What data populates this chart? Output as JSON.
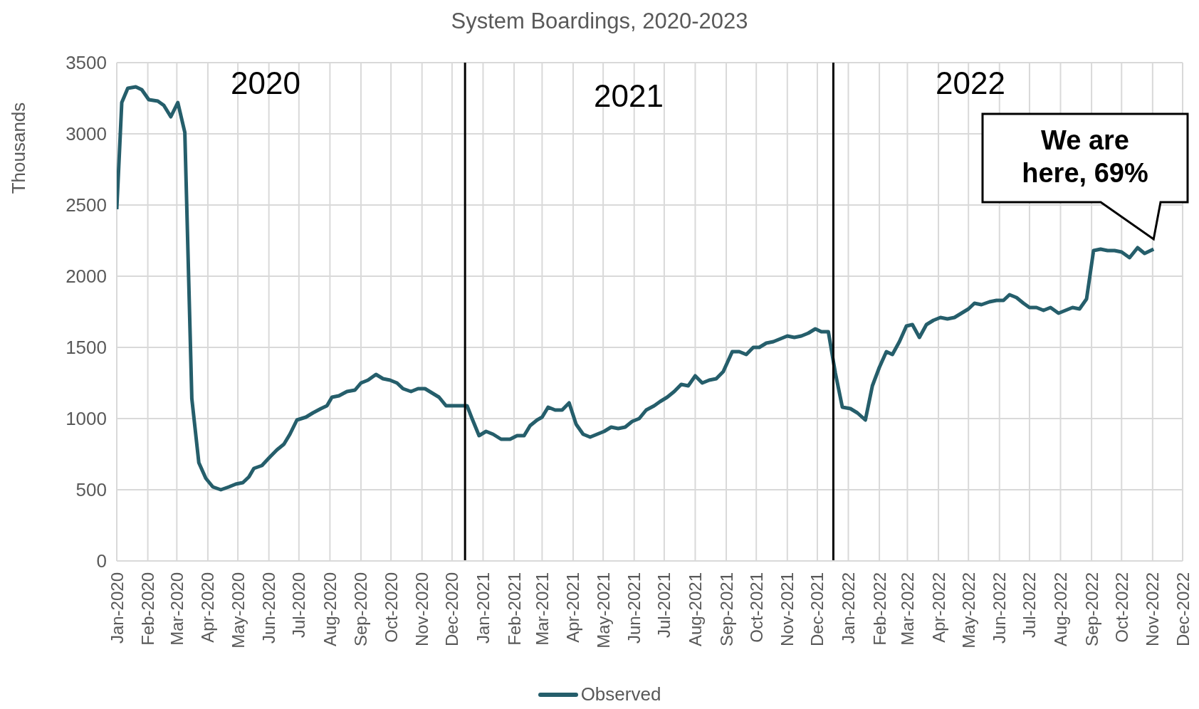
{
  "chart_data": {
    "type": "line",
    "title": "System Boardings, 2020-2023",
    "ylabel": "Thousands",
    "xlim": [
      "2020-01-01",
      "2022-12-01"
    ],
    "xticks": [
      {
        "value": "2020-01-01",
        "label": "Jan-2020"
      },
      {
        "value": "2020-02-01",
        "label": "Feb-2020"
      },
      {
        "value": "2020-03-01",
        "label": "Mar-2020"
      },
      {
        "value": "2020-04-01",
        "label": "Apr-2020"
      },
      {
        "value": "2020-05-01",
        "label": "May-2020"
      },
      {
        "value": "2020-06-01",
        "label": "Jun-2020"
      },
      {
        "value": "2020-07-01",
        "label": "Jul-2020"
      },
      {
        "value": "2020-08-01",
        "label": "Aug-2020"
      },
      {
        "value": "2020-09-01",
        "label": "Sep-2020"
      },
      {
        "value": "2020-10-01",
        "label": "Oct-2020"
      },
      {
        "value": "2020-11-01",
        "label": "Nov-2020"
      },
      {
        "value": "2020-12-01",
        "label": "Dec-2020"
      },
      {
        "value": "2021-01-01",
        "label": "Jan-2021"
      },
      {
        "value": "2021-02-01",
        "label": "Feb-2021"
      },
      {
        "value": "2021-03-01",
        "label": "Mar-2021"
      },
      {
        "value": "2021-04-01",
        "label": "Apr-2021"
      },
      {
        "value": "2021-05-01",
        "label": "May-2021"
      },
      {
        "value": "2021-06-01",
        "label": "Jun-2021"
      },
      {
        "value": "2021-07-01",
        "label": "Jul-2021"
      },
      {
        "value": "2021-08-01",
        "label": "Aug-2021"
      },
      {
        "value": "2021-09-01",
        "label": "Sep-2021"
      },
      {
        "value": "2021-10-01",
        "label": "Oct-2021"
      },
      {
        "value": "2021-11-01",
        "label": "Nov-2021"
      },
      {
        "value": "2021-12-01",
        "label": "Dec-2021"
      },
      {
        "value": "2022-01-01",
        "label": "Jan-2022"
      },
      {
        "value": "2022-02-01",
        "label": "Feb-2022"
      },
      {
        "value": "2022-03-01",
        "label": "Mar-2022"
      },
      {
        "value": "2022-04-01",
        "label": "Apr-2022"
      },
      {
        "value": "2022-05-01",
        "label": "May-2022"
      },
      {
        "value": "2022-06-01",
        "label": "Jun-2022"
      },
      {
        "value": "2022-07-01",
        "label": "Jul-2022"
      },
      {
        "value": "2022-08-01",
        "label": "Aug-2022"
      },
      {
        "value": "2022-09-01",
        "label": "Sep-2022"
      },
      {
        "value": "2022-10-01",
        "label": "Oct-2022"
      },
      {
        "value": "2022-11-01",
        "label": "Nov-2022"
      },
      {
        "value": "2022-12-01",
        "label": "Dec-2022"
      }
    ],
    "ylim": [
      0,
      3500
    ],
    "yticks": [
      0,
      500,
      1000,
      1500,
      2000,
      2500,
      3000,
      3500
    ],
    "grid": true,
    "legend": "bottom",
    "marker": "none",
    "line_style": "solid",
    "series": [
      {
        "name": "Observed",
        "color": "#255e6b",
        "x": [
          "2020-01-01",
          "2020-01-06",
          "2020-01-12",
          "2020-01-20",
          "2020-01-26",
          "2020-02-02",
          "2020-02-11",
          "2020-02-17",
          "2020-02-24",
          "2020-03-02",
          "2020-03-09",
          "2020-03-16",
          "2020-03-23",
          "2020-03-30",
          "2020-04-06",
          "2020-04-14",
          "2020-04-22",
          "2020-04-29",
          "2020-05-06",
          "2020-05-12",
          "2020-05-17",
          "2020-05-25",
          "2020-06-02",
          "2020-06-09",
          "2020-06-16",
          "2020-06-22",
          "2020-06-29",
          "2020-07-08",
          "2020-07-15",
          "2020-07-23",
          "2020-07-29",
          "2020-08-03",
          "2020-08-10",
          "2020-08-18",
          "2020-08-26",
          "2020-09-01",
          "2020-09-08",
          "2020-09-16",
          "2020-09-23",
          "2020-09-30",
          "2020-10-07",
          "2020-10-13",
          "2020-10-21",
          "2020-10-28",
          "2020-11-04",
          "2020-11-11",
          "2020-11-18",
          "2020-11-25",
          "2020-12-02",
          "2020-12-09",
          "2020-12-16",
          "2020-12-21",
          "2020-12-28",
          "2021-01-04",
          "2021-01-11",
          "2021-01-19",
          "2021-01-28",
          "2021-02-04",
          "2021-02-11",
          "2021-02-17",
          "2021-02-24",
          "2021-03-01",
          "2021-03-07",
          "2021-03-14",
          "2021-03-21",
          "2021-03-28",
          "2021-04-04",
          "2021-04-11",
          "2021-04-18",
          "2021-04-25",
          "2021-05-02",
          "2021-05-09",
          "2021-05-16",
          "2021-05-23",
          "2021-05-30",
          "2021-06-06",
          "2021-06-13",
          "2021-06-21",
          "2021-06-27",
          "2021-07-04",
          "2021-07-11",
          "2021-07-18",
          "2021-07-25",
          "2021-08-01",
          "2021-08-08",
          "2021-08-15",
          "2021-08-22",
          "2021-08-29",
          "2021-09-07",
          "2021-09-14",
          "2021-09-21",
          "2021-09-28",
          "2021-10-04",
          "2021-10-11",
          "2021-10-18",
          "2021-10-25",
          "2021-11-01",
          "2021-11-08",
          "2021-11-15",
          "2021-11-22",
          "2021-11-29",
          "2021-12-05",
          "2021-12-12",
          "2021-12-19",
          "2021-12-26",
          "2022-01-03",
          "2022-01-10",
          "2022-01-18",
          "2022-01-25",
          "2022-02-01",
          "2022-02-08",
          "2022-02-14",
          "2022-02-21",
          "2022-02-28",
          "2022-03-06",
          "2022-03-13",
          "2022-03-20",
          "2022-03-27",
          "2022-04-03",
          "2022-04-10",
          "2022-04-17",
          "2022-04-24",
          "2022-05-01",
          "2022-05-07",
          "2022-05-14",
          "2022-05-22",
          "2022-05-29",
          "2022-06-05",
          "2022-06-11",
          "2022-06-18",
          "2022-06-25",
          "2022-07-01",
          "2022-07-08",
          "2022-07-15",
          "2022-07-22",
          "2022-07-30",
          "2022-08-06",
          "2022-08-13",
          "2022-08-20",
          "2022-08-27",
          "2022-09-03",
          "2022-09-10",
          "2022-09-17",
          "2022-09-24",
          "2022-10-01",
          "2022-10-09",
          "2022-10-17",
          "2022-10-24",
          "2022-11-02"
        ],
        "values": [
          2470,
          3220,
          3320,
          3330,
          3310,
          3240,
          3230,
          3200,
          3120,
          3220,
          3010,
          1140,
          690,
          580,
          520,
          500,
          520,
          540,
          550,
          590,
          650,
          670,
          730,
          780,
          820,
          890,
          990,
          1010,
          1040,
          1070,
          1090,
          1150,
          1160,
          1190,
          1200,
          1250,
          1270,
          1310,
          1280,
          1270,
          1250,
          1210,
          1190,
          1210,
          1210,
          1180,
          1150,
          1090,
          1090,
          1090,
          1090,
          1000,
          880,
          910,
          890,
          855,
          855,
          880,
          880,
          950,
          990,
          1010,
          1080,
          1060,
          1060,
          1110,
          960,
          890,
          870,
          890,
          910,
          940,
          930,
          940,
          980,
          1000,
          1060,
          1090,
          1120,
          1150,
          1190,
          1240,
          1230,
          1300,
          1250,
          1270,
          1280,
          1330,
          1470,
          1470,
          1450,
          1500,
          1500,
          1530,
          1540,
          1560,
          1580,
          1570,
          1580,
          1600,
          1630,
          1610,
          1610,
          1320,
          1080,
          1070,
          1040,
          990,
          1230,
          1360,
          1470,
          1450,
          1540,
          1650,
          1660,
          1570,
          1660,
          1690,
          1710,
          1700,
          1710,
          1740,
          1770,
          1810,
          1800,
          1820,
          1830,
          1830,
          1870,
          1850,
          1810,
          1780,
          1780,
          1760,
          1780,
          1740,
          1760,
          1780,
          1770,
          1840,
          2180,
          2190,
          2180,
          2180,
          2170,
          2130,
          2200,
          2160,
          2190
        ]
      }
    ],
    "ref_lines": [
      {
        "axis": "x",
        "value": "2020-12-14",
        "color": "#000000"
      },
      {
        "axis": "x",
        "value": "2021-12-17",
        "color": "#000000"
      }
    ],
    "annotations": [
      "2020",
      "2021",
      "2022",
      {
        "text": "We are here, 69%",
        "x": "2022-11-02",
        "y": 2190
      }
    ]
  }
}
